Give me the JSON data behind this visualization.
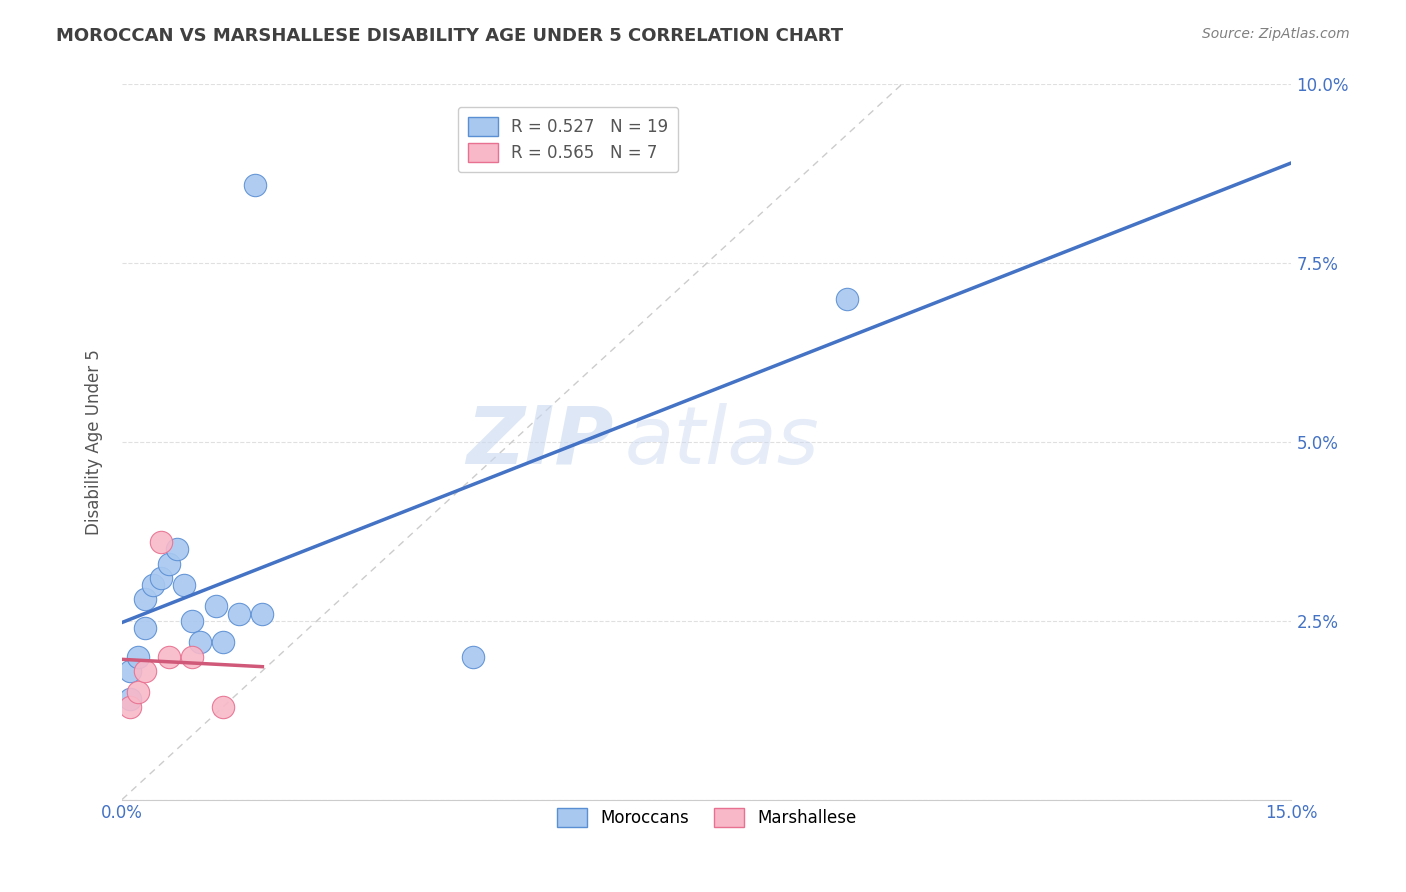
{
  "title": "MOROCCAN VS MARSHALLESE DISABILITY AGE UNDER 5 CORRELATION CHART",
  "source": "Source: ZipAtlas.com",
  "ylabel": "Disability Age Under 5",
  "xlim": [
    0.0,
    0.15
  ],
  "ylim": [
    0.0,
    0.1
  ],
  "moroccan_x": [
    0.001,
    0.001,
    0.002,
    0.003,
    0.003,
    0.004,
    0.005,
    0.006,
    0.007,
    0.008,
    0.009,
    0.01,
    0.012,
    0.013,
    0.015,
    0.017,
    0.018,
    0.045,
    0.093
  ],
  "moroccan_y": [
    0.014,
    0.018,
    0.02,
    0.024,
    0.028,
    0.03,
    0.031,
    0.033,
    0.035,
    0.03,
    0.025,
    0.022,
    0.027,
    0.022,
    0.026,
    0.086,
    0.026,
    0.02,
    0.07
  ],
  "marshallese_x": [
    0.001,
    0.002,
    0.003,
    0.005,
    0.006,
    0.009,
    0.013
  ],
  "marshallese_y": [
    0.013,
    0.015,
    0.018,
    0.036,
    0.02,
    0.02,
    0.013
  ],
  "moroccan_color": "#a8c8f0",
  "marshallese_color": "#f8b8c8",
  "moroccan_edge_color": "#5b8fd4",
  "marshallese_edge_color": "#e87090",
  "moroccan_line_color": "#4472c4",
  "marshallese_line_color": "#d05878",
  "diagonal_color": "#cccccc",
  "R_moroccan": 0.527,
  "N_moroccan": 19,
  "R_marshallese": 0.565,
  "N_marshallese": 7,
  "legend_moroccan": "Moroccans",
  "legend_marshallese": "Marshallese",
  "watermark_zip": "ZIP",
  "watermark_atlas": "atlas",
  "background_color": "#ffffff",
  "grid_color": "#e0e0e0",
  "tick_color": "#4472c4",
  "title_color": "#404040",
  "source_color": "#808080"
}
